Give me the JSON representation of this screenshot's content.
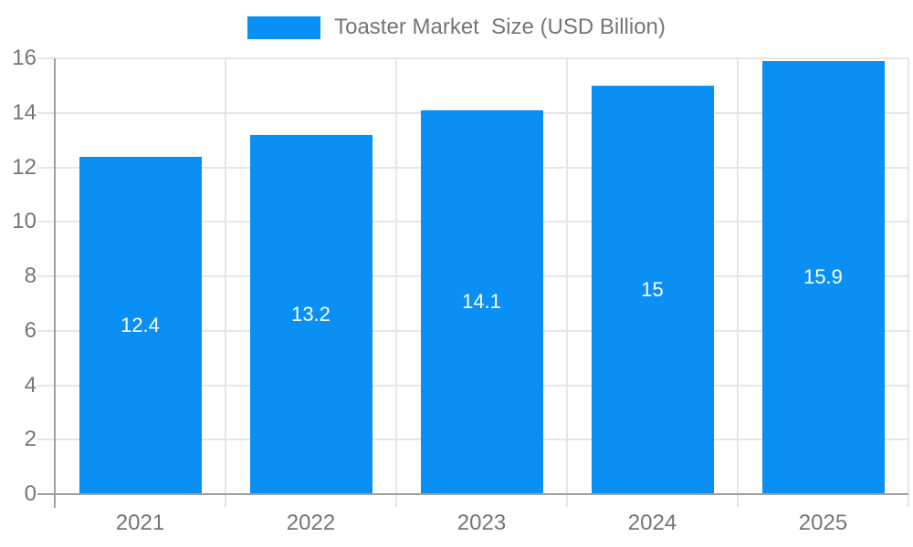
{
  "legend": {
    "label": "Toaster Market  Size (USD Billion)"
  },
  "colors": {
    "bar": "#0a8ff4",
    "grid": "#e6e6e6",
    "axis": "#a0a0a0",
    "tick_text": "#757575",
    "bar_label_text": "#ffffff"
  },
  "chart_data": {
    "type": "bar",
    "title": "Toaster Market  Size (USD Billion)",
    "categories": [
      "2021",
      "2022",
      "2023",
      "2024",
      "2025"
    ],
    "values": [
      12.4,
      13.2,
      14.1,
      15,
      15.9
    ],
    "bar_labels": [
      "12.4",
      "13.2",
      "14.1",
      "15",
      "15.9"
    ],
    "xlabel": "",
    "ylabel": "",
    "ylim": [
      0,
      16
    ],
    "ytick_step": 2,
    "ytick_labels": [
      "0",
      "2",
      "4",
      "6",
      "8",
      "10",
      "12",
      "14",
      "16"
    ],
    "grid": true,
    "legend_position": "top",
    "legend_entries": [
      "Toaster Market  Size (USD Billion)"
    ]
  }
}
